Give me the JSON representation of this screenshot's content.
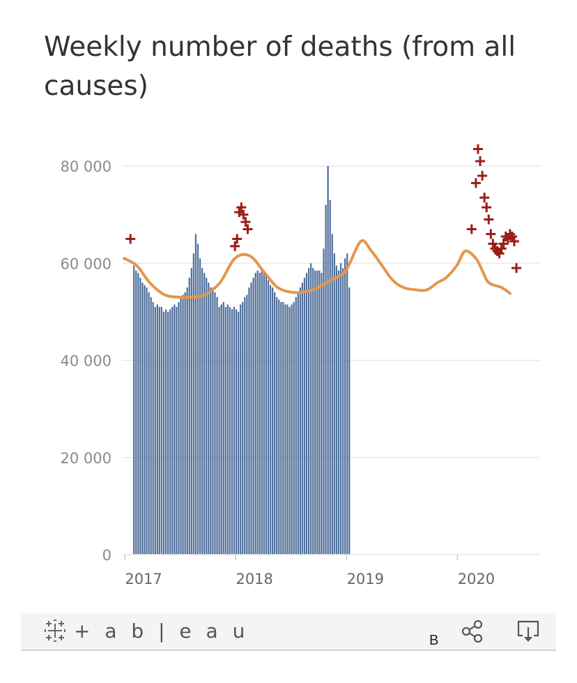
{
  "title": "Weekly number of deaths (from all causes)",
  "footer": {
    "brand_text": "+ a b | e a u",
    "extra_label": "B",
    "share_icon": "share-icon",
    "download_icon": "download-icon",
    "brand_icon": "tableau-logo-icon"
  },
  "colors": {
    "bars": "#4e6d99",
    "trend": "#e5964b",
    "markers": "#9b1c17",
    "grid": "#e8e8e8"
  },
  "chart_data": {
    "type": "bar",
    "title": "Weekly number of deaths (from all causes)",
    "xlabel": "",
    "ylabel": "",
    "ylim": [
      0,
      84000
    ],
    "y_ticks": [
      0,
      20000,
      40000,
      60000,
      80000
    ],
    "y_tick_labels": [
      "0",
      "20 000",
      "40 000",
      "60 000",
      "80 000"
    ],
    "x_tick_labels": [
      "2017",
      "2018",
      "2019",
      "2020"
    ],
    "x_tick_weeks": [
      1,
      53,
      105,
      157
    ],
    "grid": true,
    "legend": "none",
    "series": [
      {
        "type": "bar",
        "week_start": 3,
        "values": [
          59500,
          58500,
          58000,
          57000,
          56000,
          55500,
          55000,
          54000,
          53000,
          52000,
          51000,
          51500,
          51000,
          51000,
          50000,
          50500,
          50000,
          50500,
          51000,
          51500,
          51000,
          52000,
          53000,
          53500,
          54000,
          55000,
          57000,
          59000,
          62000,
          66000,
          64000,
          61000,
          59000,
          58000,
          57000,
          56000,
          55000,
          55000,
          54000,
          53000,
          51000,
          51500,
          52000,
          51000,
          51500,
          51000,
          50500,
          51000,
          50500,
          50000,
          51500,
          52000,
          53000,
          53500,
          55000,
          56000,
          57000,
          58000,
          58500,
          58000,
          58500,
          58000,
          57500,
          56500,
          55500,
          55000,
          54000,
          53000,
          52500,
          52000,
          52000,
          51500,
          51500,
          51000,
          51500,
          52000,
          53000,
          54000,
          55000,
          56000,
          57000,
          58000,
          59000,
          60000,
          59000,
          58500,
          58500,
          58500,
          58000,
          63000,
          72000,
          80000,
          73000,
          66000,
          62000,
          59500,
          58500,
          60000,
          59000,
          61000,
          62000,
          55000
        ]
      },
      {
        "type": "line",
        "week_points": [
          0,
          6,
          12,
          19,
          26,
          32,
          38,
          45,
          52,
          59,
          66,
          72,
          79,
          86,
          91,
          97,
          104,
          111,
          116,
          121,
          126,
          131,
          137,
          142,
          147,
          151,
          156,
          160,
          165,
          168,
          171,
          177,
          181
        ],
        "values": [
          61000,
          59500,
          56000,
          53500,
          53000,
          53000,
          53500,
          56000,
          61000,
          61500,
          58000,
          55000,
          54000,
          54200,
          55000,
          56500,
          58500,
          64500,
          62500,
          59500,
          56500,
          55000,
          54500,
          54500,
          56000,
          57000,
          59500,
          62500,
          61000,
          58500,
          56000,
          55000,
          53800
        ]
      },
      {
        "type": "scatter",
        "points": [
          {
            "week": 3,
            "value": 65000
          },
          {
            "week": 52,
            "value": 63500
          },
          {
            "week": 53,
            "value": 65000
          },
          {
            "week": 54,
            "value": 70500
          },
          {
            "week": 55,
            "value": 71500
          },
          {
            "week": 56,
            "value": 70000
          },
          {
            "week": 57,
            "value": 68500
          },
          {
            "week": 58,
            "value": 67000
          },
          {
            "week": 163,
            "value": 67000
          },
          {
            "week": 165,
            "value": 76500
          },
          {
            "week": 166,
            "value": 83500
          },
          {
            "week": 167,
            "value": 81000
          },
          {
            "week": 168,
            "value": 78000
          },
          {
            "week": 169,
            "value": 73500
          },
          {
            "week": 170,
            "value": 71500
          },
          {
            "week": 171,
            "value": 69000
          },
          {
            "week": 172,
            "value": 66000
          },
          {
            "week": 173,
            "value": 64000
          },
          {
            "week": 174,
            "value": 63000
          },
          {
            "week": 175,
            "value": 62500
          },
          {
            "week": 176,
            "value": 62000
          },
          {
            "week": 177,
            "value": 63000
          },
          {
            "week": 178,
            "value": 64000
          },
          {
            "week": 179,
            "value": 65500
          },
          {
            "week": 180,
            "value": 65000
          },
          {
            "week": 181,
            "value": 66000
          },
          {
            "week": 182,
            "value": 65500
          },
          {
            "week": 183,
            "value": 64500
          },
          {
            "week": 184,
            "value": 59000
          }
        ]
      }
    ]
  }
}
